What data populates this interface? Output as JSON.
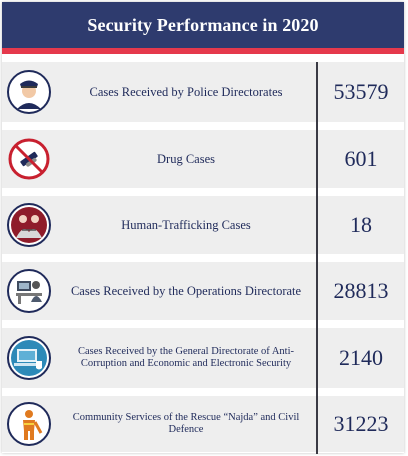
{
  "header": {
    "title": "Security Performance in 2020"
  },
  "rows": [
    {
      "label": "Cases Received by Police Directorates",
      "value": "53579",
      "icon": "police-officer-icon"
    },
    {
      "label": "Drug Cases",
      "value": "601",
      "icon": "no-drugs-icon"
    },
    {
      "label": "Human-Trafficking Cases",
      "value": "18",
      "icon": "human-trafficking-icon"
    },
    {
      "label": "Cases Received by the Operations Directorate",
      "value": "28813",
      "icon": "operations-desk-icon"
    },
    {
      "label": "Cases Received by the General Directorate of Anti-Corruption and Economic and Electronic Security",
      "value": "2140",
      "icon": "cyber-security-icon"
    },
    {
      "label": "Community Services of the Rescue “Najda” and Civil Defence",
      "value": "31223",
      "icon": "rescue-worker-icon"
    }
  ],
  "colors": {
    "header_bg": "#2e3b6e",
    "header_accent": "#e5394c",
    "row_bg": "#eeeeee",
    "text": "#1f2a5a",
    "icon_ring": "#1f2a5a"
  }
}
